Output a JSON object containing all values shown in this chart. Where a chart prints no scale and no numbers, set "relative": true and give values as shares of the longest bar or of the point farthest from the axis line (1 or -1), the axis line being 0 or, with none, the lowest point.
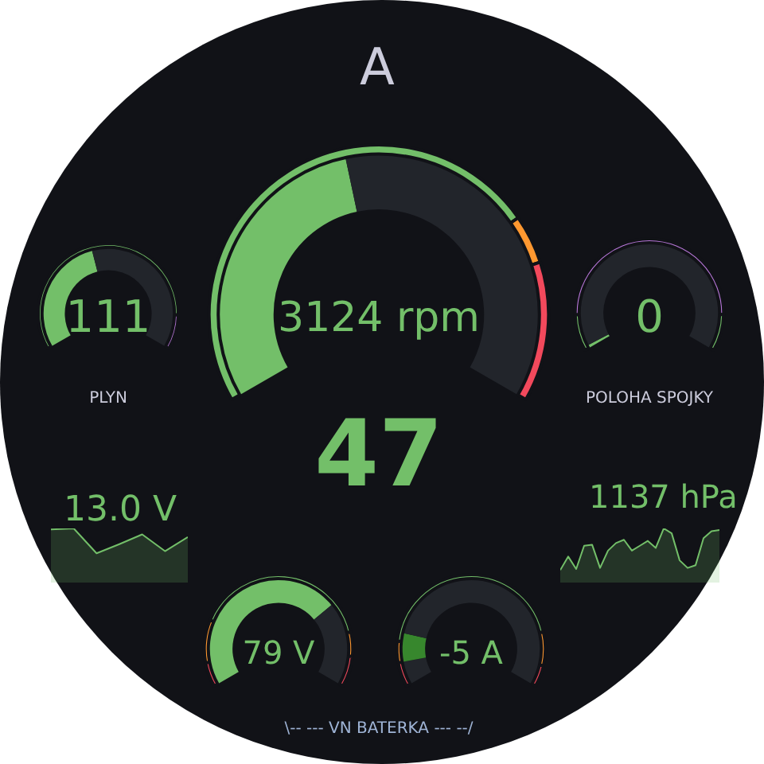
{
  "chart_data": [
    {
      "type": "other",
      "title": "A",
      "annotations": [
        "47",
        "\\-- --- VN BATERKA --- --/"
      ]
    },
    {
      "type": "donut",
      "categories": [
        null,
        null,
        null
      ],
      "annotations": [
        "3124 rpm"
      ],
      "series": [
        {
          "values": [
            45,
            55,
            null
          ],
          "colors": [
            "#73bf69",
            "#22252b",
            "#22252b"
          ]
        },
        {
          "values": [
            73,
            7,
            20
          ],
          "colors": [
            "#73bf69",
            "#ff9830",
            "#f2495c"
          ]
        }
      ]
    },
    {
      "type": "donut",
      "title": "PLYN",
      "categories": [
        null,
        null
      ],
      "annotations": [
        "111"
      ],
      "series": [
        {
          "values": [
            44,
            56
          ],
          "colors": [
            "#73bf69",
            "#22252b"
          ]
        },
        {
          "values": [
            88,
            12
          ],
          "colors": [
            "#73bf69",
            "#b877d9"
          ]
        }
      ]
    },
    {
      "type": "donut",
      "title": "POLOHA SPOJKY",
      "categories": [
        null,
        null,
        null
      ],
      "annotations": [
        "0"
      ],
      "series": [
        {
          "values": [
            1,
            99,
            null
          ],
          "colors": [
            "#73bf69",
            "#22252b",
            "#22252b"
          ]
        },
        {
          "values": [
            12,
            76,
            12
          ],
          "colors": [
            "#73bf69",
            "#b877d9",
            "#73bf69"
          ]
        }
      ]
    },
    {
      "type": "area",
      "relative": true,
      "categories": [
        null,
        null,
        null,
        null,
        null,
        null,
        null
      ],
      "values": [
        0.98,
        1,
        0.54,
        0.71,
        0.89,
        0.58,
        0.84
      ],
      "color": "#73bf69",
      "annotations": [
        "13.0 V"
      ]
    },
    {
      "type": "area",
      "relative": true,
      "categories": [
        null,
        null,
        null,
        null,
        null,
        null,
        null,
        null,
        null,
        null,
        null,
        null,
        null,
        null,
        null,
        null,
        null,
        null,
        null,
        null,
        null
      ],
      "values": [
        0.23,
        0.48,
        0.25,
        0.68,
        0.7,
        0.27,
        0.59,
        0.73,
        0.79,
        0.59,
        0.68,
        0.77,
        0.64,
        1,
        0.91,
        0.41,
        0.27,
        0.32,
        0.82,
        0.95,
        0.97
      ],
      "color": "#73bf69",
      "annotations": [
        "1137 hPa"
      ]
    },
    {
      "type": "donut",
      "categories": [
        null,
        null,
        null,
        null,
        null
      ],
      "annotations": [
        "79 V"
      ],
      "series": [
        {
          "values": [
            71,
            29,
            null,
            null,
            null
          ],
          "colors": [
            "#73bf69",
            "#22252b",
            "#22252b",
            "#22252b",
            "#22252b"
          ]
        },
        {
          "values": [
            8,
            14,
            60,
            8,
            10
          ],
          "colors": [
            "#f2495c",
            "#ff9830",
            "#73bf69",
            "#ff9830",
            "#f2495c"
          ]
        }
      ]
    },
    {
      "type": "donut",
      "categories": [
        null,
        null,
        null,
        null,
        null
      ],
      "annotations": [
        "-5 A"
      ],
      "series": [
        {
          "values": [
            8,
            10,
            82,
            null,
            null
          ],
          "colors": [
            "#22252b",
            "#37872d",
            "#22252b",
            "#22252b",
            "#22252b"
          ]
        },
        {
          "values": [
            8,
            7,
            67,
            11,
            7
          ],
          "colors": [
            "#f2495c",
            "#ff9830",
            "#73bf69",
            "#ff9830",
            "#f2495c"
          ]
        }
      ]
    }
  ]
}
